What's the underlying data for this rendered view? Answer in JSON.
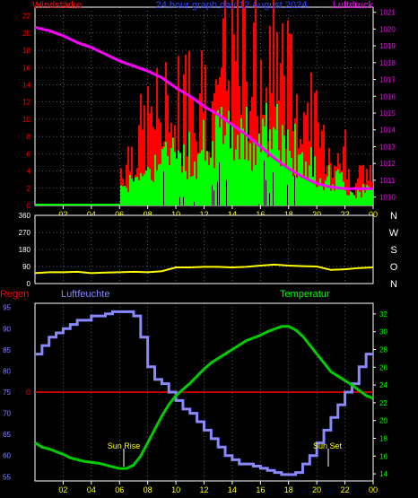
{
  "top": {
    "title_left": "Windstärke",
    "title_center": "24 hour graph day  12 August 2024",
    "title_right": "Luftdruck"
  },
  "middle": {
    "compass": [
      "N",
      "W",
      "S",
      "O",
      "N"
    ]
  },
  "bottom": {
    "label_rain": "Regen",
    "label_humidity": "Luftfeuchte",
    "label_temperature": "Temperatur",
    "label_sunrise": "Sun Rise",
    "label_sunset": "Sun Set"
  },
  "colors": {
    "wind_gust": "#ff0000",
    "wind_avg": "#00ff00",
    "wind_dark": "#000000",
    "pressure": "#ff00ff",
    "direction": "#ffff00",
    "humidity": "#8888ff",
    "temperature": "#00cc00",
    "rain": "#ff0000",
    "time_ticks": "#ffff00",
    "left_axis_top": "#ff0000",
    "left_axis_bottom": "#8888ff",
    "right_axis_top": "#ff00ff",
    "right_axis_bottom": "#00ff00"
  },
  "chart_data": [
    {
      "type": "bar",
      "title": "24 hour graph day  12 August 2024",
      "x_ticks": [
        "02",
        "04",
        "06",
        "08",
        "10",
        "12",
        "14",
        "16",
        "18",
        "20",
        "22",
        "00"
      ],
      "y_left_label": "Windstärke",
      "y_left_ticks": [
        0,
        2,
        4,
        6,
        8,
        10,
        12,
        14,
        16,
        18,
        20,
        22
      ],
      "y_left_range": [
        0,
        23
      ],
      "y_right_label": "Luftdruck",
      "y_right_ticks": [
        1010,
        1011,
        1012,
        1013,
        1014,
        1015,
        1016,
        1017,
        1018,
        1019,
        1020,
        1021
      ],
      "y_right_range": [
        1009.5,
        1021.3
      ],
      "grid": "dotted",
      "series": [
        {
          "name": "Luftdruck",
          "type": "line",
          "x": [
            0,
            1,
            2,
            3,
            4,
            5,
            6,
            7,
            8,
            9,
            10,
            11,
            12,
            13,
            14,
            15,
            16,
            17,
            18,
            19,
            20,
            21,
            22,
            23,
            24
          ],
          "values": [
            1020.1,
            1019.9,
            1019.6,
            1019.2,
            1018.9,
            1018.5,
            1018.1,
            1017.8,
            1017.5,
            1017.1,
            1016.5,
            1016.0,
            1015.4,
            1014.9,
            1014.3,
            1013.7,
            1013.0,
            1012.3,
            1011.7,
            1011.2,
            1010.8,
            1010.6,
            1010.5,
            1010.5,
            1010.5
          ]
        }
      ]
    },
    {
      "type": "line",
      "x_ticks": [
        "02",
        "04",
        "06",
        "08",
        "10",
        "12",
        "14",
        "16",
        "18",
        "20",
        "22",
        "00"
      ],
      "y_ticks": [
        0,
        90,
        180,
        270,
        360
      ],
      "y_range": [
        0,
        360
      ],
      "series": [
        {
          "name": "Windrichtung",
          "x": [
            0,
            1,
            2,
            3,
            4,
            5,
            6,
            7,
            8,
            9,
            10,
            11,
            12,
            13,
            14,
            15,
            16,
            17,
            18,
            19,
            20,
            21,
            22,
            23,
            24
          ],
          "values": [
            55,
            60,
            60,
            62,
            55,
            58,
            60,
            62,
            60,
            65,
            85,
            85,
            88,
            88,
            85,
            88,
            95,
            100,
            95,
            92,
            90,
            72,
            75,
            82,
            85
          ]
        }
      ]
    },
    {
      "type": "line",
      "x_ticks": [
        "02",
        "04",
        "06",
        "08",
        "10",
        "12",
        "14",
        "16",
        "18",
        "20",
        "22",
        "00"
      ],
      "y_left_label": "Luftfeuchte",
      "y_left_ticks": [
        55,
        60,
        65,
        70,
        75,
        80,
        85,
        90,
        95
      ],
      "y_left_range": [
        54,
        96
      ],
      "y_right_label": "Temperatur",
      "y_right_ticks": [
        14,
        16,
        18,
        20,
        22,
        24,
        26,
        28,
        30,
        32
      ],
      "y_right_range": [
        13.2,
        33.2
      ],
      "rain_label": "0",
      "rain_value": 0,
      "annotations": [
        "Sun Rise",
        "Sun Set"
      ],
      "series": [
        {
          "name": "Luftfeuchte",
          "x": [
            0,
            0.5,
            1,
            1.5,
            2,
            2.5,
            3,
            3.5,
            4,
            4.5,
            5,
            5.5,
            6,
            6.5,
            7,
            7.5,
            8,
            8.5,
            9,
            9.5,
            10,
            10.5,
            11,
            11.5,
            12,
            12.5,
            13,
            13.5,
            14,
            14.5,
            15,
            15.5,
            16,
            16.5,
            17,
            17.5,
            18,
            18.5,
            19,
            19.5,
            20,
            20.5,
            21,
            21.5,
            22,
            22.5,
            23,
            23.5,
            24
          ],
          "values": [
            84,
            86,
            88,
            89,
            90,
            91,
            92,
            92,
            93,
            93,
            93.5,
            94,
            94,
            94,
            93,
            88,
            81,
            78,
            77,
            75,
            73,
            71,
            70,
            68,
            66,
            64,
            62,
            60,
            59,
            58,
            58,
            57.5,
            57,
            56.5,
            56,
            55.5,
            55.5,
            56,
            58,
            60,
            63,
            66,
            69,
            72,
            75,
            77,
            81,
            84,
            84
          ]
        },
        {
          "name": "Temperatur",
          "x": [
            0,
            0.5,
            1,
            1.5,
            2,
            2.5,
            3,
            3.5,
            4,
            4.5,
            5,
            5.5,
            6,
            6.5,
            7,
            7.5,
            8,
            8.5,
            9,
            9.5,
            10,
            10.5,
            11,
            11.5,
            12,
            12.5,
            13,
            13.5,
            14,
            14.5,
            15,
            15.5,
            16,
            16.5,
            17,
            17.5,
            18,
            18.5,
            19,
            19.5,
            20,
            20.5,
            21,
            21.5,
            22,
            22.5,
            23,
            23.5,
            24
          ],
          "values": [
            17.5,
            17,
            16.8,
            16.5,
            16.2,
            15.8,
            15.6,
            15.4,
            15.3,
            15.2,
            15,
            14.8,
            14.6,
            14.6,
            15,
            16,
            17.5,
            19,
            20.5,
            21.8,
            22.8,
            23.5,
            24.2,
            25,
            25.8,
            26.5,
            27,
            27.5,
            28,
            28.5,
            29,
            29.3,
            29.6,
            30,
            30.3,
            30.6,
            30.6,
            30.2,
            29.5,
            28.5,
            27.5,
            26.5,
            25.5,
            25,
            24.5,
            24,
            23.4,
            22.8,
            22.5
          ]
        }
      ]
    }
  ]
}
